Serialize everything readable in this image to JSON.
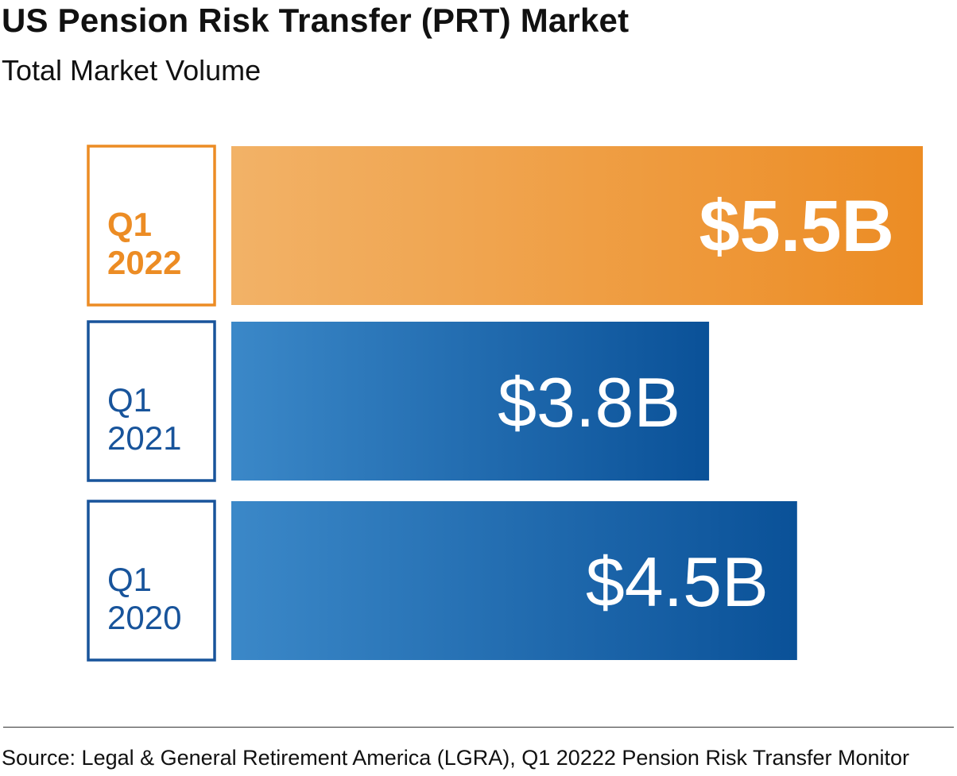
{
  "title": "US Pension Risk Transfer (PRT) Market",
  "subtitle": "Total Market Volume",
  "source": "Source: Legal & General Retirement America (LGRA), Q1 20222 Pension Risk Transfer Monitor",
  "colors": {
    "highlight_light": "#f2b267",
    "highlight_dark": "#ec8c24",
    "blue_light": "#3b88c8",
    "blue_dark": "#0a5198",
    "label_blue": "#18549b",
    "label_orange": "#ec8c24"
  },
  "chart_data": {
    "type": "bar",
    "orientation": "horizontal",
    "categories": [
      "Q1 2022",
      "Q1 2021",
      "Q1 2020"
    ],
    "category_lines": [
      [
        "Q1",
        "2022"
      ],
      [
        "Q1",
        "2021"
      ],
      [
        "Q1",
        "2020"
      ]
    ],
    "values": [
      5.5,
      3.8,
      4.5
    ],
    "value_labels": [
      "$5.5B",
      "$3.8B",
      "$4.5B"
    ],
    "unit": "Billion USD",
    "highlight_index": 0,
    "xlim": [
      0,
      5.5
    ]
  }
}
